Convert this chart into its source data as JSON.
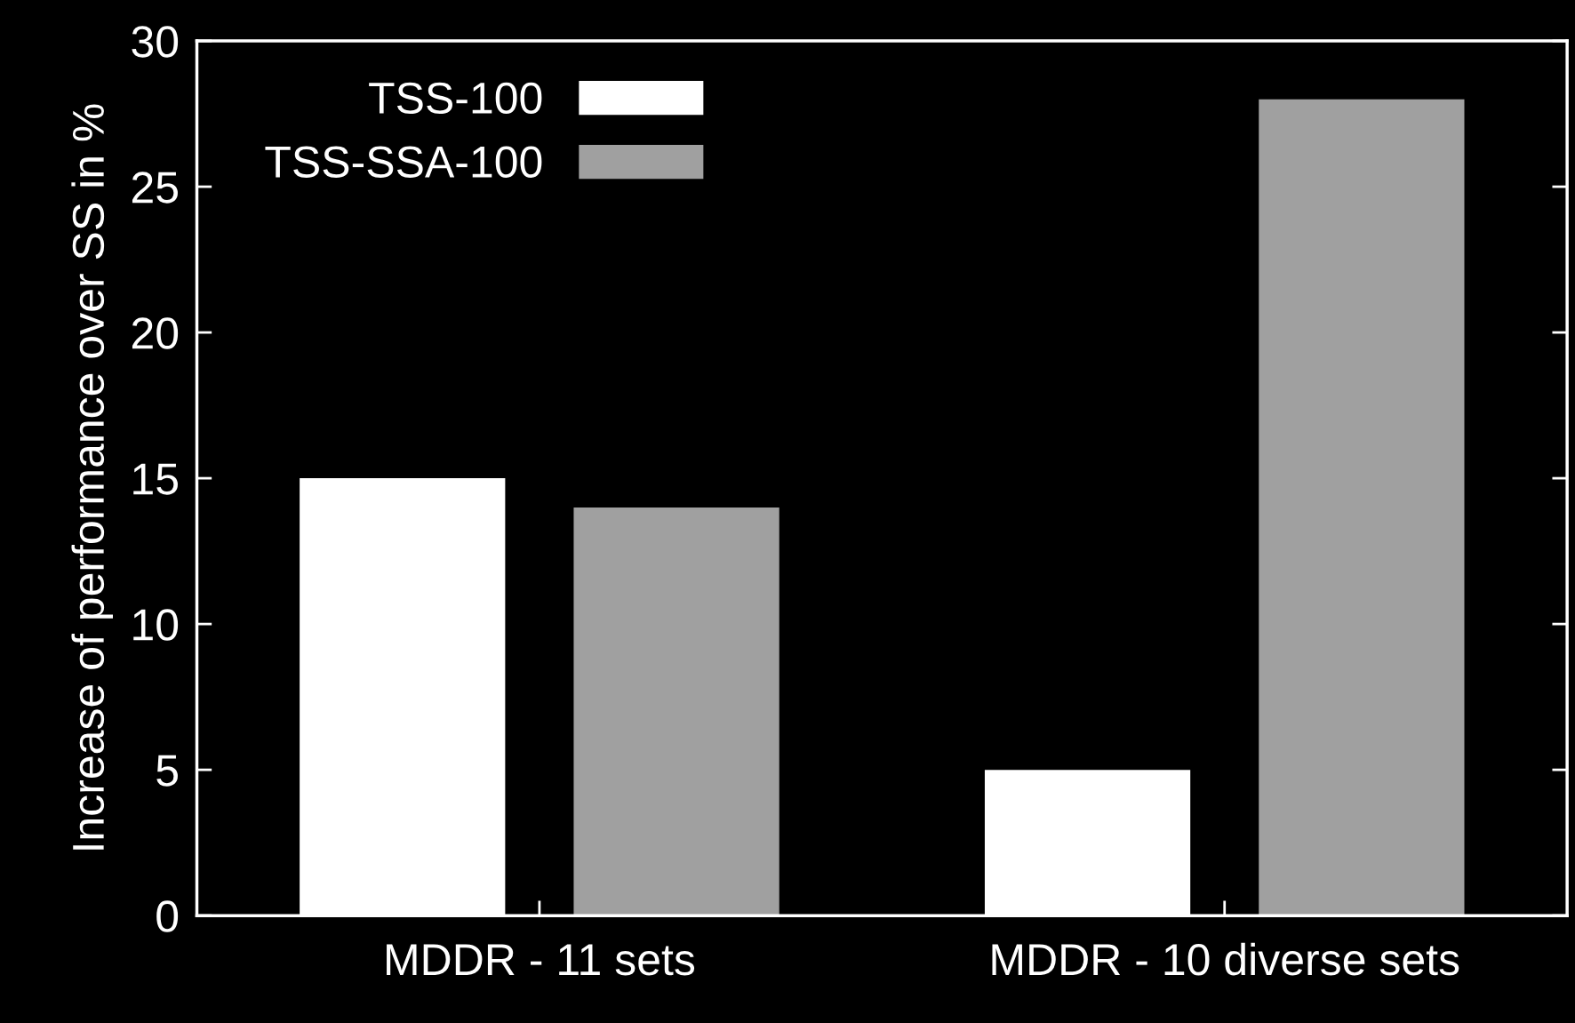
{
  "chart_data": {
    "type": "bar",
    "ylabel": "Increase of performance over SS in %",
    "categories": [
      "MDDR - 11 sets",
      "MDDR - 10 diverse sets"
    ],
    "series": [
      {
        "name": "TSS-100",
        "color": "#ffffff",
        "values": [
          15,
          5
        ]
      },
      {
        "name": "TSS-SSA-100",
        "color": "#a0a0a0",
        "values": [
          14,
          28
        ]
      }
    ],
    "ylim": [
      0,
      30
    ],
    "yticks": [
      0,
      5,
      10,
      15,
      20,
      25,
      30
    ],
    "grid": false,
    "legend": "top left"
  }
}
